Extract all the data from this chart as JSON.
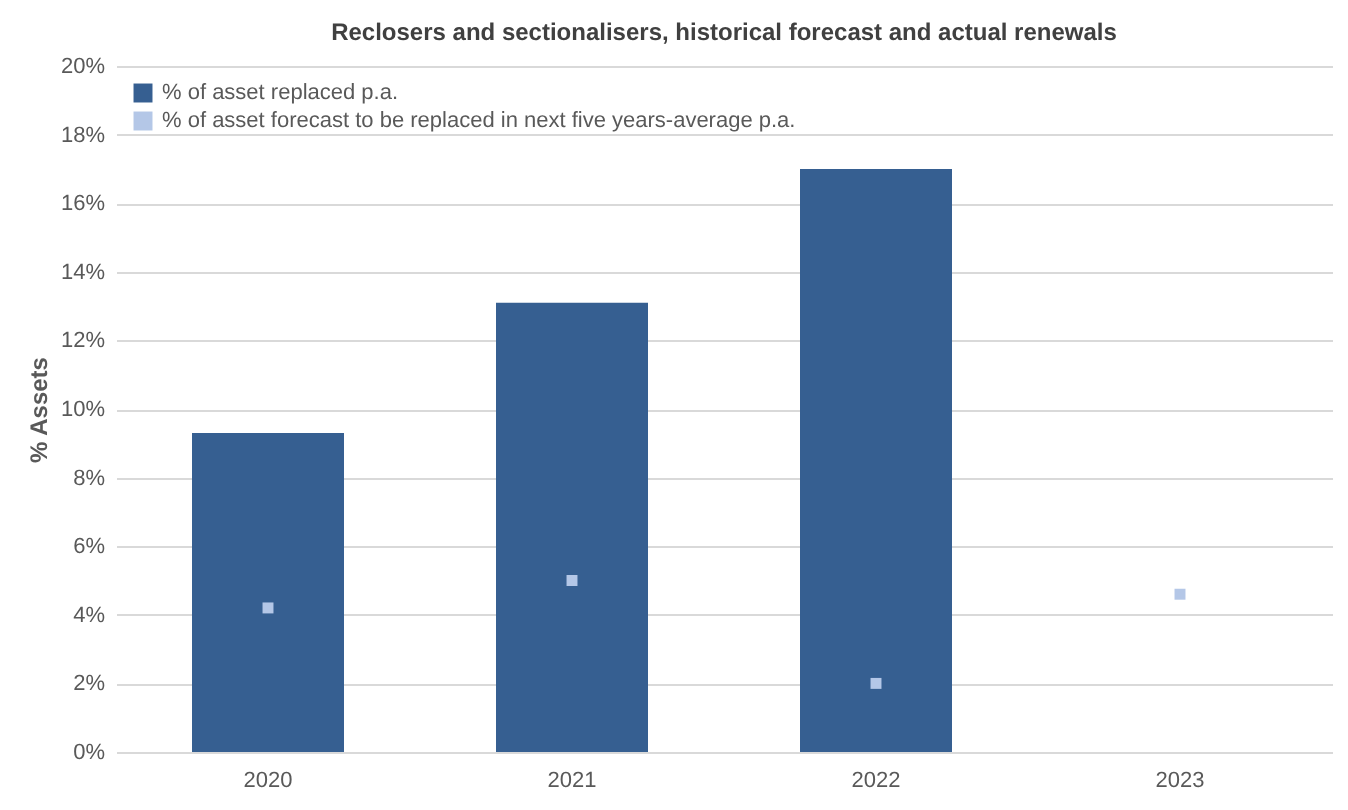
{
  "chart_data": {
    "type": "bar",
    "title": "Reclosers and sectionalisers, historical forecast and actual renewals",
    "ylabel": "% Assets",
    "categories": [
      "2020",
      "2021",
      "2022",
      "2023"
    ],
    "series": [
      {
        "name": "% of asset replaced p.a.",
        "color": "#365f91",
        "values": [
          9.3,
          13.1,
          17.0,
          null
        ]
      },
      {
        "name": "% of asset forecast to be replaced in next five years-average p.a.",
        "type": "scatter",
        "color": "#b4c7e7",
        "values": [
          4.2,
          5.0,
          2.0,
          4.6
        ]
      }
    ],
    "ylim": [
      0,
      20
    ],
    "yticks": [
      {
        "value": 0,
        "label": "0%"
      },
      {
        "value": 2,
        "label": "2%"
      },
      {
        "value": 4,
        "label": "4%"
      },
      {
        "value": 6,
        "label": "6%"
      },
      {
        "value": 8,
        "label": "8%"
      },
      {
        "value": 10,
        "label": "10%"
      },
      {
        "value": 12,
        "label": "12%"
      },
      {
        "value": 14,
        "label": "14%"
      },
      {
        "value": 16,
        "label": "16%"
      },
      {
        "value": 18,
        "label": "18%"
      },
      {
        "value": 20,
        "label": "20%"
      }
    ],
    "grid": "y",
    "legend": "top left"
  }
}
